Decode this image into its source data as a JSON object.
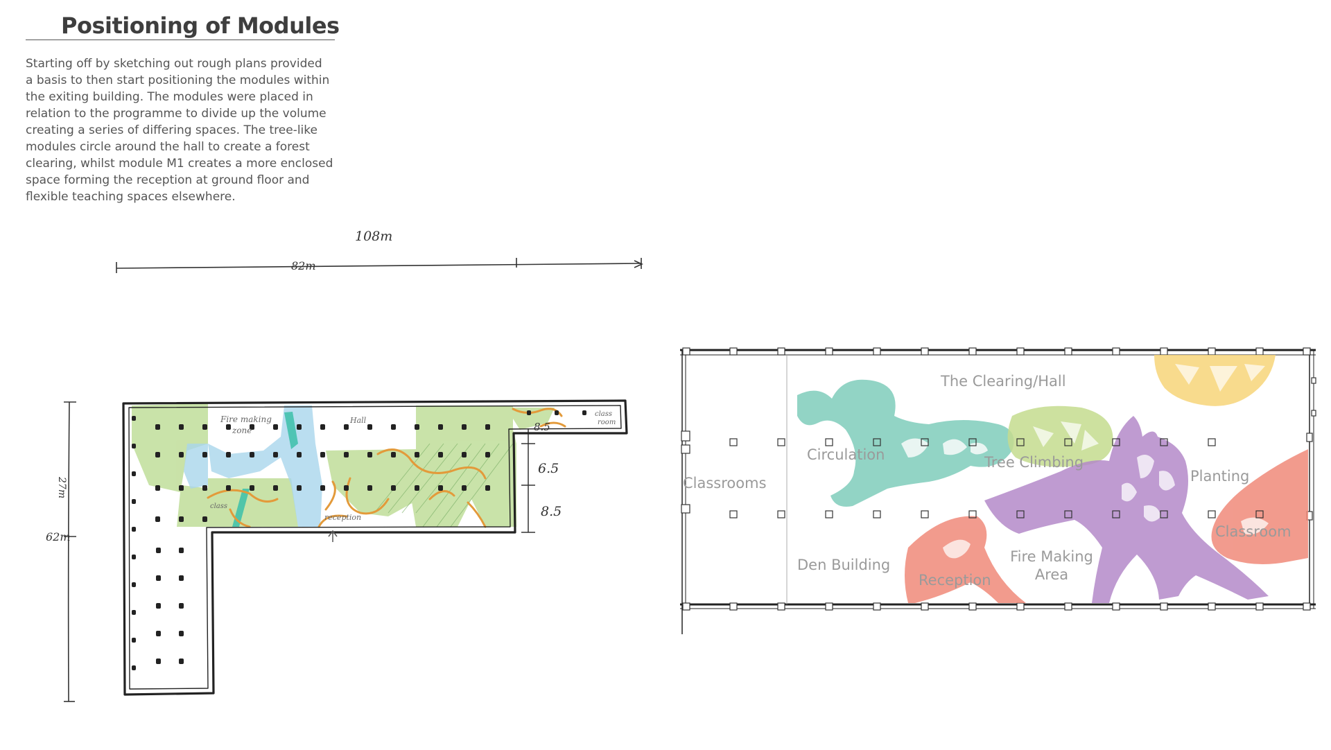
{
  "header": {
    "title": "Positioning of Modules"
  },
  "description": {
    "lines": [
      "Starting off by sketching out rough plans provided",
      "a basis to then start positioning the modules within",
      "the exiting building. The modules were placed in",
      "relation to the programme to divide up the volume",
      "creating a series of differing spaces. The tree-like",
      "modules circle around the hall to create a forest",
      "clearing, whilst module M1 creates a more enclosed",
      "space forming the reception at ground floor and",
      "flexible teaching spaces elsewhere."
    ]
  },
  "sketch": {
    "dim_overall": "108m",
    "dim_width": "82m",
    "dim_height_total": "62m",
    "dim_height_wing": "27m",
    "dim_a": "8.5",
    "dim_b": "6.5",
    "dim_c": "8.5",
    "labels": {
      "fire_making": "Fire making",
      "zone": "zone",
      "hall": "Hall",
      "class_room_a": "class",
      "class_room_b": "room",
      "classroom_left": "class",
      "reception": "reception"
    }
  },
  "plan": {
    "zones": {
      "clearing": "The Clearing/Hall",
      "circulation": "Circulation",
      "tree_climbing": "Tree Climbing",
      "planting": "Planting",
      "classrooms": "Classrooms",
      "classroom": "Classroom",
      "den_building": "Den Building",
      "reception": "Reception",
      "fire_making_1": "Fire Making",
      "fire_making_2": "Area"
    },
    "module_colors": {
      "teal": "#7fcdbb",
      "green": "#c5dc8f",
      "yellow": "#f7d57a",
      "purple": "#b48ac9",
      "red": "#f08a7a"
    }
  }
}
